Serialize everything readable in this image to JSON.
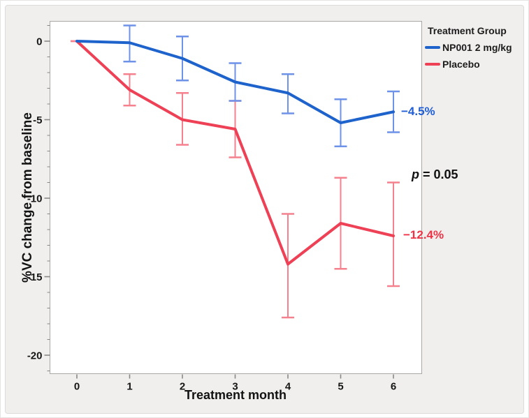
{
  "figure": {
    "y_axis_title": "%VC change from baseline",
    "x_axis_title": "Treatment month"
  },
  "legend": {
    "title": "Treatment Group",
    "items": [
      {
        "label": "NP001 2 mg/kg",
        "color": "#1e63cc"
      },
      {
        "label": "Placebo",
        "color": "#ee4156"
      }
    ]
  },
  "annotations": {
    "blue_end_label": "−4.5%",
    "red_end_label": "−12.4%",
    "p_symbol": "p",
    "p_rest": " = 0.05"
  },
  "colors": {
    "np001_line": "#1e63cc",
    "np001_error": "#6e92e8",
    "placebo_line": "#ee4156",
    "placebo_error": "#f5818e",
    "panel_background": "#f0efed",
    "plot_border": "#aaa8a5",
    "tick": "#8a8886"
  },
  "chart_data": {
    "type": "line",
    "title": "",
    "xlabel": "Treatment month",
    "ylabel": "%VC change from baseline",
    "x": [
      0,
      1,
      2,
      3,
      4,
      5,
      6
    ],
    "xtick_labels": [
      "0",
      "1",
      "2",
      "3",
      "4",
      "5",
      "6"
    ],
    "yticks_major": [
      0,
      -5,
      -10,
      -15,
      -20
    ],
    "ytick_labels": [
      "0",
      "-5",
      "-10",
      "-15",
      "-20"
    ],
    "ytick_minor_step": 1,
    "ylim": [
      -21.3,
      1.3
    ],
    "xlim": [
      -0.55,
      6.55
    ],
    "grid": false,
    "legend_position": "outside-top-right",
    "error_bars": true,
    "p_value_annotation": "p = 0.05",
    "series": [
      {
        "name": "Placebo",
        "color": "#ee4156",
        "error_color": "#f5818e",
        "values": [
          0,
          -3.1,
          -5.0,
          -5.6,
          -14.2,
          -11.6,
          -12.4
        ],
        "err_high": [
          0,
          -2.1,
          -3.3,
          -3.8,
          -11.0,
          -8.7,
          -9.0
        ],
        "err_low": [
          0,
          -4.1,
          -6.6,
          -7.4,
          -17.6,
          -14.5,
          -15.6
        ],
        "end_label": "−12.4%"
      },
      {
        "name": "NP001 2 mg/kg",
        "color": "#1e63cc",
        "error_color": "#6e92e8",
        "values": [
          0,
          -0.1,
          -1.1,
          -2.6,
          -3.3,
          -5.2,
          -4.5
        ],
        "err_high": [
          null,
          1.0,
          0.3,
          -1.4,
          -2.1,
          -3.7,
          -3.2
        ],
        "err_low": [
          null,
          -1.3,
          -2.5,
          -3.8,
          -4.6,
          -6.7,
          -5.8
        ],
        "end_label": "−4.5%"
      }
    ]
  }
}
